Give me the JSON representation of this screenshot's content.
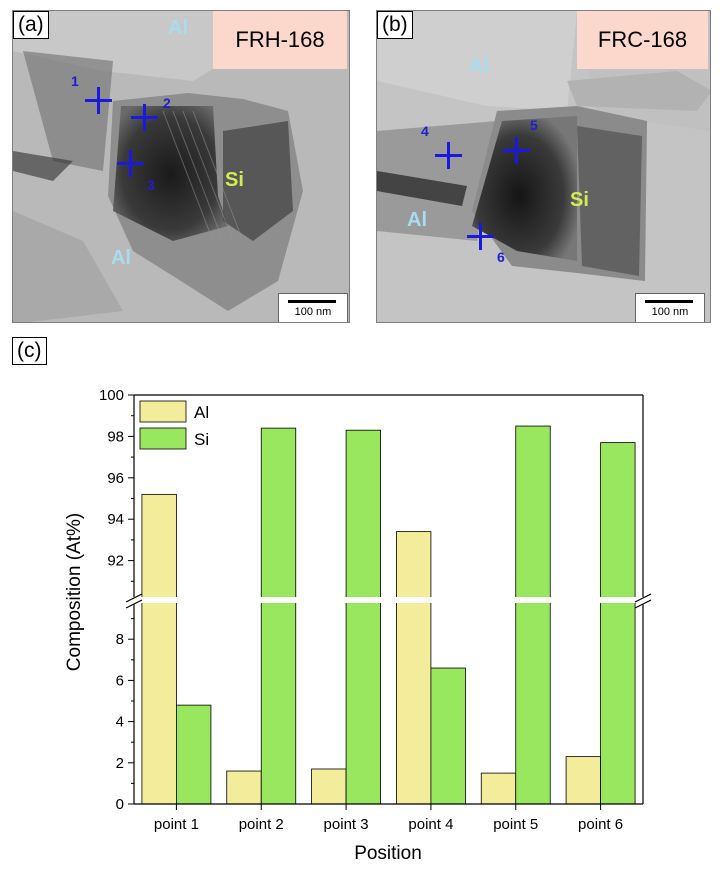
{
  "panel_a": {
    "label": "(a)",
    "sample": "FRH-168",
    "phases": [
      "Al",
      "Al",
      "Si"
    ],
    "points": [
      "1",
      "2",
      "3"
    ],
    "scale": "100 nm"
  },
  "panel_b": {
    "label": "(b)",
    "sample": "FRC-168",
    "phases": [
      "Al",
      "Al",
      "Si"
    ],
    "points": [
      "4",
      "5",
      "6"
    ],
    "scale": "100 nm"
  },
  "panel_c": {
    "label": "(c)"
  },
  "colors": {
    "al": "#f3ec9b",
    "si": "#99e65f",
    "marker": "#1a1adf"
  },
  "chart_data": {
    "type": "bar",
    "title": "",
    "xlabel": "Position",
    "ylabel": "Composition (At%)",
    "categories": [
      "point 1",
      "point 2",
      "point 3",
      "point 4",
      "point 5",
      "point 6"
    ],
    "series": [
      {
        "name": "Al",
        "values": [
          95.2,
          1.6,
          1.7,
          93.4,
          1.5,
          2.3
        ]
      },
      {
        "name": "Si",
        "values": [
          4.8,
          98.4,
          98.3,
          6.6,
          98.5,
          97.7
        ]
      }
    ],
    "axis_break": {
      "lower_range": [
        0,
        10
      ],
      "upper_range": [
        90,
        100
      ]
    },
    "yticks_lower": [
      "0",
      "2",
      "4",
      "6",
      "8"
    ],
    "yticks_upper": [
      "92",
      "94",
      "96",
      "98",
      "100"
    ],
    "grid": false,
    "legend_position": "top-left"
  }
}
